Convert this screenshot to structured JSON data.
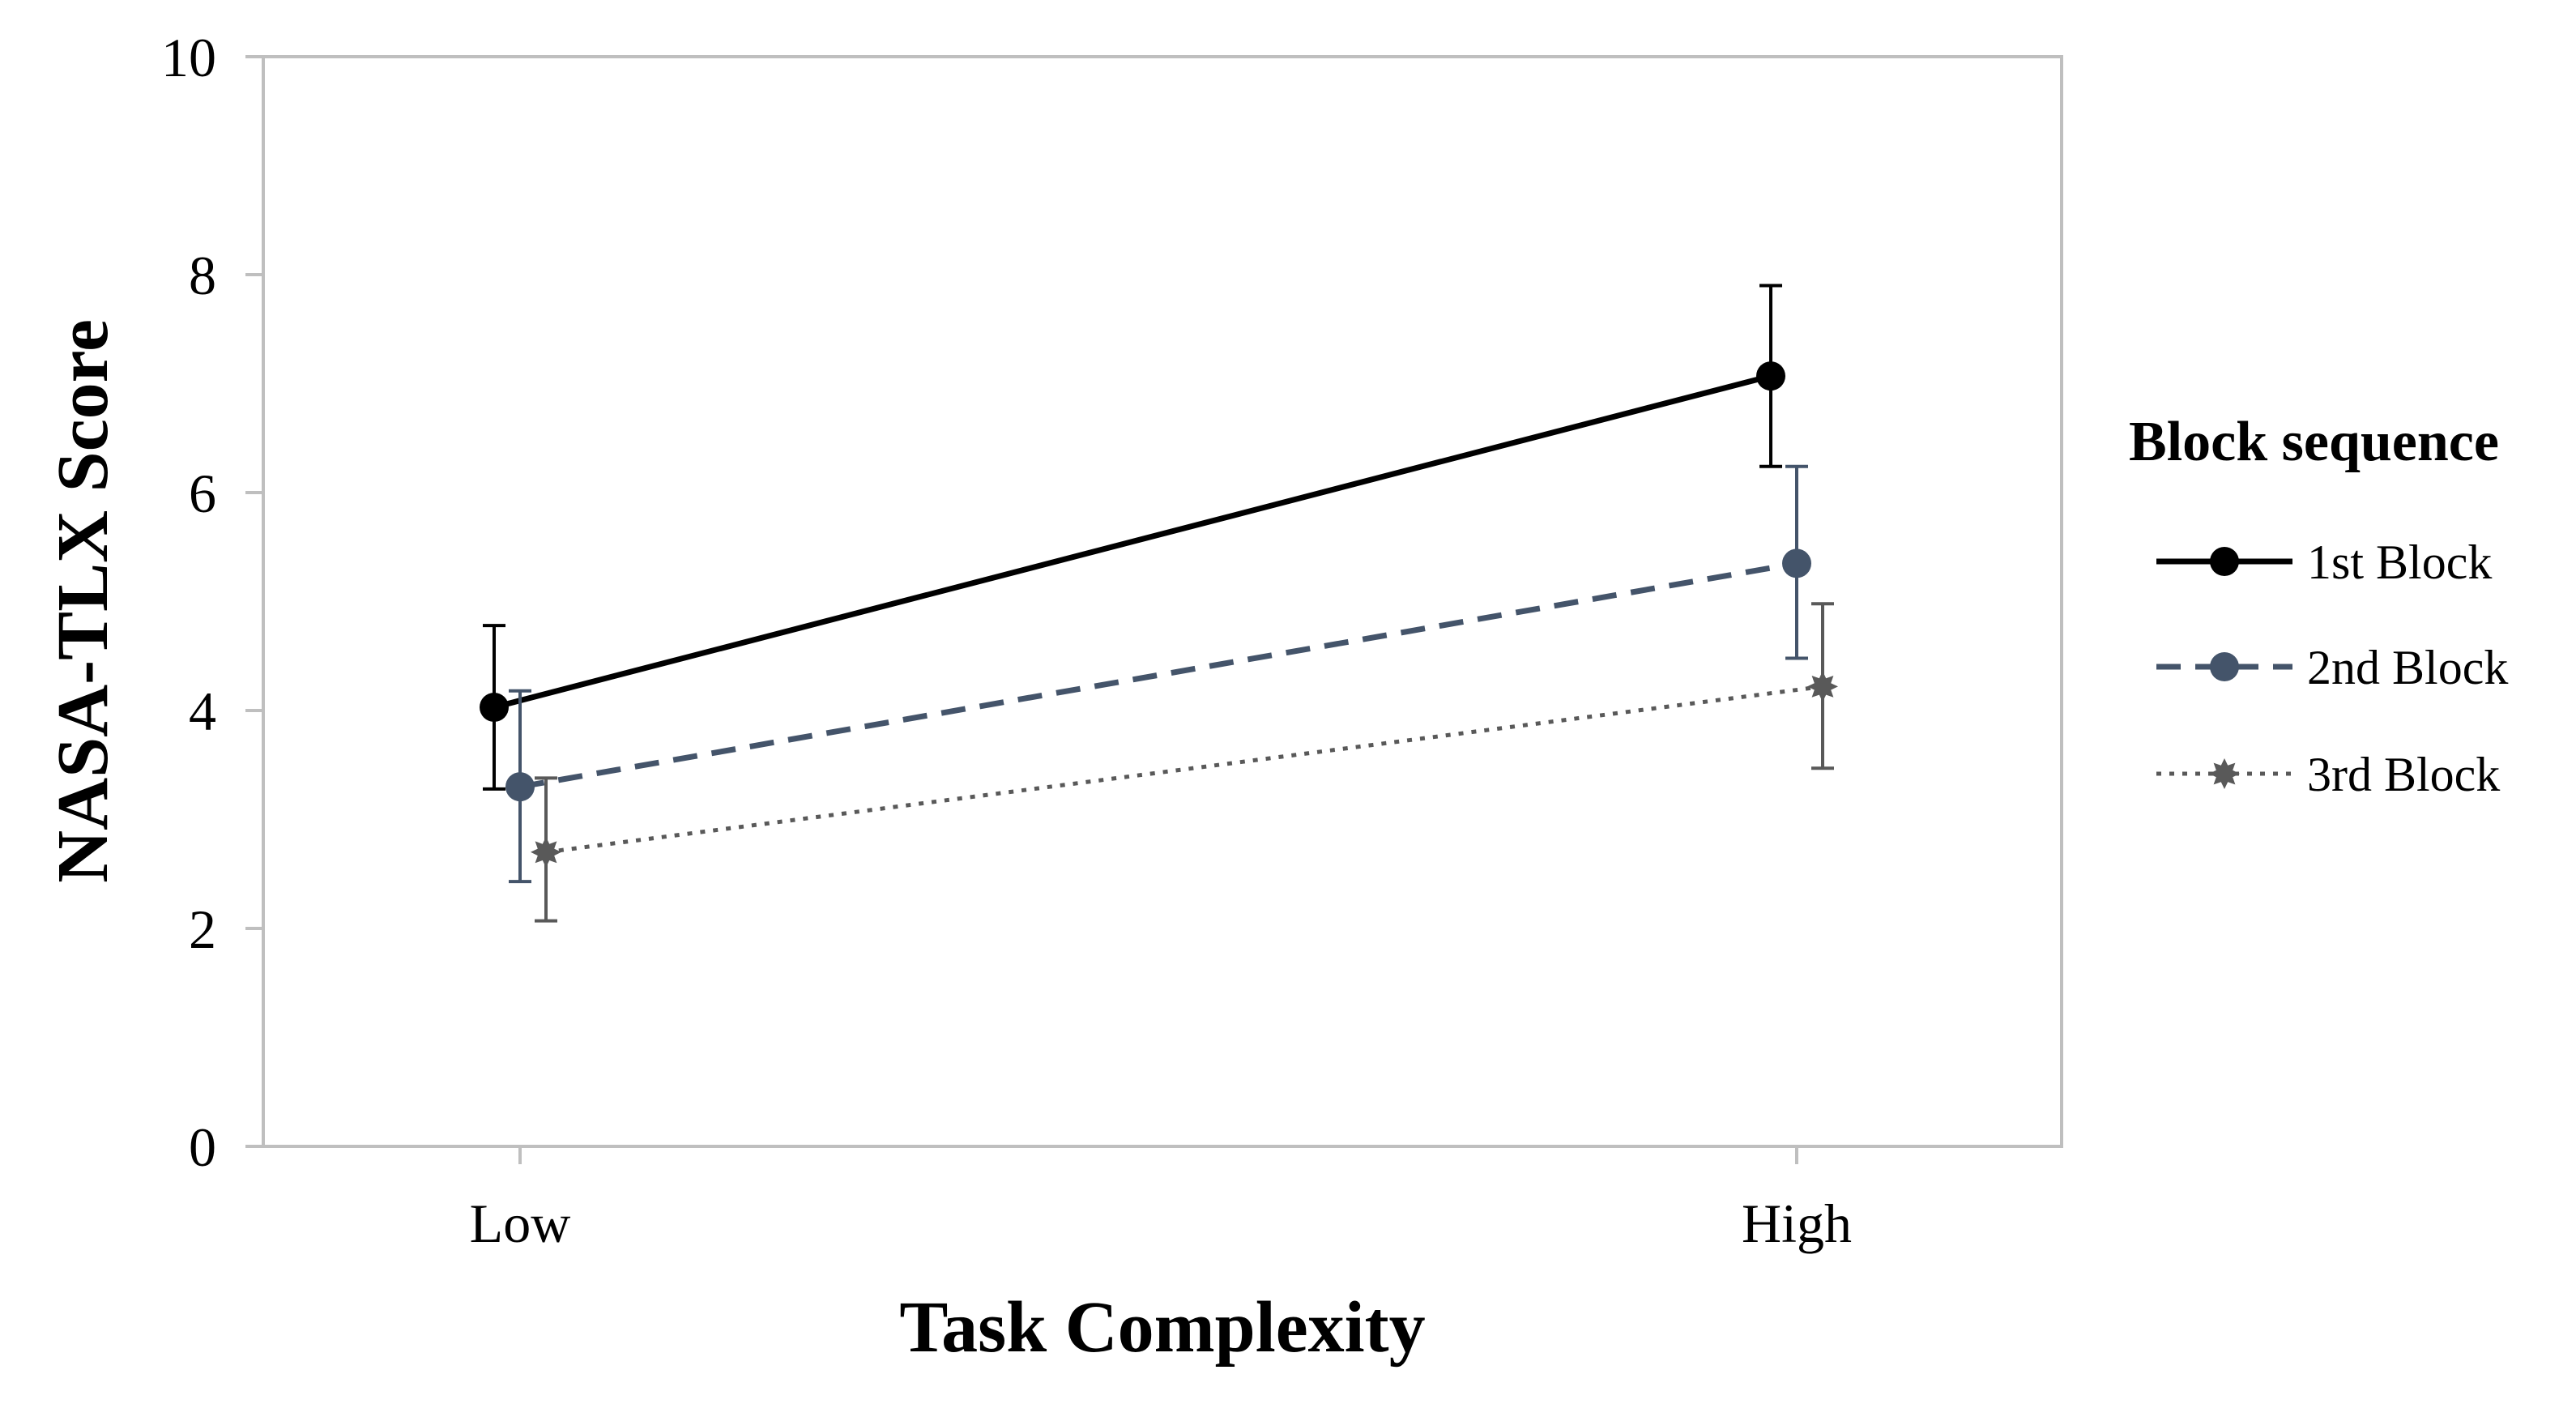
{
  "chart_data": {
    "type": "line",
    "title": "",
    "xlabel": "Task Complexity",
    "ylabel": "NASA-TLX Score",
    "categories": [
      "Low",
      "High"
    ],
    "ylim": [
      0,
      10
    ],
    "yticks": [
      "0",
      "2",
      "4",
      "6",
      "8",
      "10"
    ],
    "grid": false,
    "legend": {
      "title": "Block sequence",
      "position": "right"
    },
    "series": [
      {
        "name": "1st Block",
        "values": [
          4.03,
          7.07
        ],
        "error_low": [
          3.28,
          6.24
        ],
        "error_high": [
          4.78,
          7.9
        ],
        "color": "#000000",
        "line_style": "solid",
        "marker": "circle"
      },
      {
        "name": "2nd Block",
        "values": [
          3.3,
          5.35
        ],
        "error_low": [
          2.43,
          4.48
        ],
        "error_high": [
          4.18,
          6.24
        ],
        "color": "#44546a",
        "line_style": "dashed",
        "marker": "circle"
      },
      {
        "name": "3rd Block",
        "values": [
          2.7,
          4.22
        ],
        "error_low": [
          2.07,
          3.47
        ],
        "error_high": [
          3.38,
          4.98
        ],
        "color": "#595959",
        "line_style": "dotted",
        "marker": "star"
      }
    ]
  }
}
